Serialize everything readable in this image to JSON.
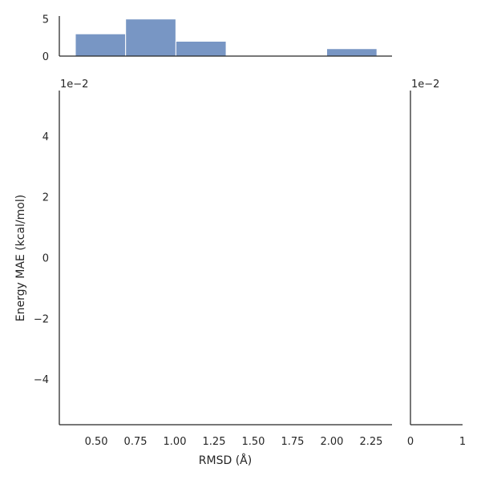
{
  "chart_data": [
    {
      "panel": "joint",
      "type": "scatter",
      "xlabel": "RMSD (Å)",
      "ylabel": "Energy MAE (kcal/mol)",
      "xlim": [
        0.265,
        2.383
      ],
      "ylim": [
        -0.055,
        0.055
      ],
      "x_ticks": [
        "0.50",
        "0.75",
        "1.00",
        "1.25",
        "1.50",
        "1.75",
        "2.00",
        "2.25"
      ],
      "x_tick_values": [
        0.5,
        0.75,
        1.0,
        1.25,
        1.5,
        1.75,
        2.0,
        2.25
      ],
      "y_ticks": [
        "−4",
        "−2",
        "0",
        "2",
        "4"
      ],
      "y_tick_values": [
        -0.04,
        -0.02,
        0,
        0.02,
        0.04
      ],
      "y_offset_label": "1e−2",
      "points": [],
      "grid": false
    },
    {
      "panel": "marginal-x",
      "type": "bar",
      "bin_edges": [
        0.367,
        0.687,
        1.007,
        1.327,
        1.647,
        1.967,
        2.287
      ],
      "values": [
        3,
        5,
        2,
        0,
        0,
        1
      ],
      "ylim": [
        0,
        5.4
      ],
      "y_ticks": [
        "0",
        "5"
      ],
      "y_tick_values": [
        0,
        5
      ],
      "color": "#7896c4"
    },
    {
      "panel": "marginal-y",
      "type": "bar",
      "values": [],
      "xlim": [
        0,
        1
      ],
      "x_ticks": [
        "0",
        "1"
      ],
      "x_tick_values": [
        0,
        1
      ],
      "y_offset_label": "1e−2"
    }
  ]
}
